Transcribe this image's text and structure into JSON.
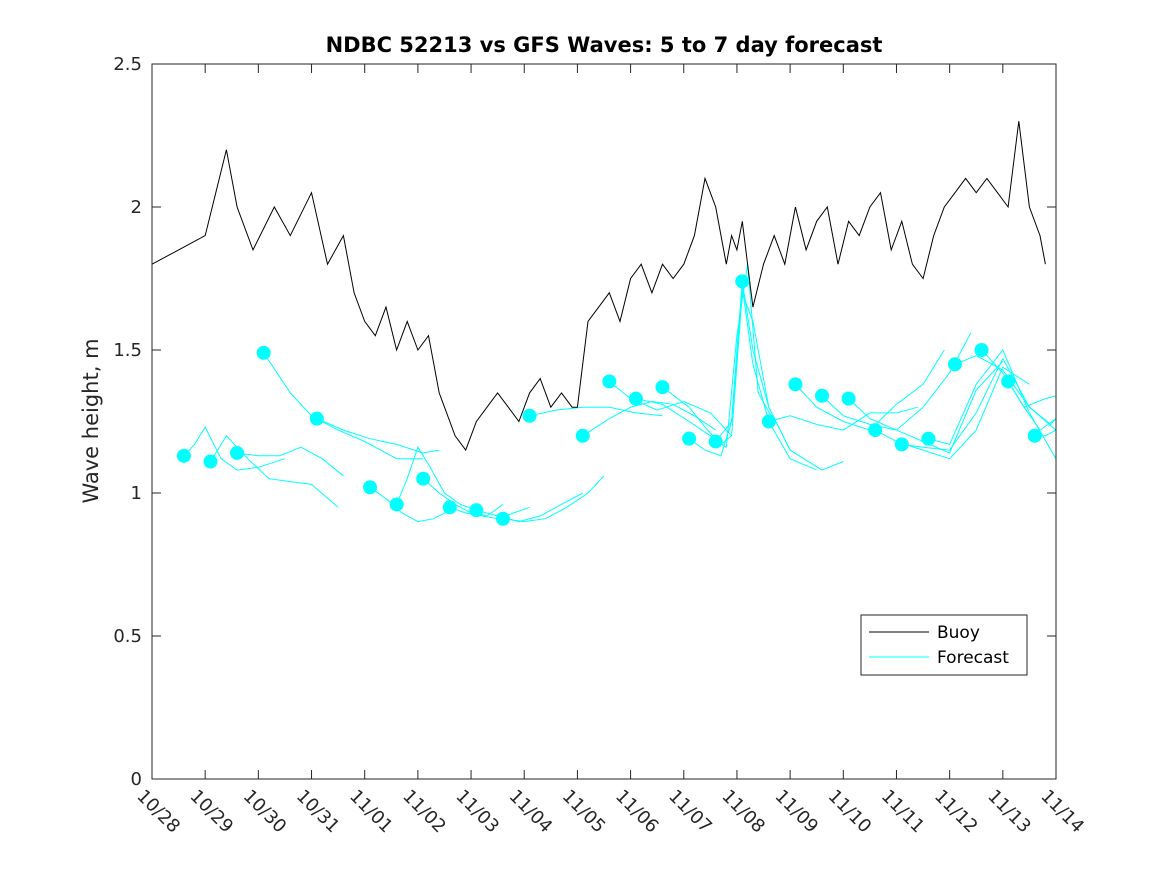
{
  "chart_data": {
    "type": "line",
    "title": "NDBC 52213 vs GFS Waves: 5 to 7 day forecast",
    "xlabel": "",
    "ylabel": "Wave height, m",
    "xlim": [
      0,
      17
    ],
    "ylim": [
      0,
      2.5
    ],
    "x_ticks": [
      0,
      1,
      2,
      3,
      4,
      5,
      6,
      7,
      8,
      9,
      10,
      11,
      12,
      13,
      14,
      15,
      16,
      17
    ],
    "x_tick_labels": [
      "10/28",
      "10/29",
      "10/30",
      "10/31",
      "11/01",
      "11/02",
      "11/03",
      "11/04",
      "11/05",
      "11/06",
      "11/07",
      "11/08",
      "11/09",
      "11/10",
      "11/11",
      "11/12",
      "11/13",
      "11/14"
    ],
    "y_ticks": [
      0,
      0.5,
      1,
      1.5,
      2,
      2.5
    ],
    "y_tick_labels": [
      "0",
      "0.5",
      "1",
      "1.5",
      "2",
      "2.5"
    ],
    "legend_position": "lower-right",
    "colors": {
      "buoy": "#000000",
      "forecast": "#00ffff",
      "axes": "#262626"
    },
    "series": [
      {
        "name": "Buoy",
        "style": "black-line",
        "x": [
          0.0,
          0.5,
          1.0,
          1.4,
          1.6,
          1.9,
          2.3,
          2.6,
          3.0,
          3.3,
          3.6,
          3.8,
          4.0,
          4.2,
          4.4,
          4.6,
          4.8,
          5.0,
          5.2,
          5.4,
          5.5,
          5.7,
          5.9,
          6.1,
          6.3,
          6.5,
          6.7,
          6.9,
          7.1,
          7.3,
          7.5,
          7.7,
          7.9,
          8.0,
          8.2,
          8.4,
          8.6,
          8.8,
          9.0,
          9.2,
          9.4,
          9.6,
          9.8,
          10.0,
          10.2,
          10.4,
          10.6,
          10.8,
          10.9,
          11.0,
          11.1,
          11.3,
          11.5,
          11.7,
          11.9,
          12.1,
          12.3,
          12.5,
          12.7,
          12.9,
          13.1,
          13.3,
          13.5,
          13.7,
          13.9,
          14.1,
          14.3,
          14.5,
          14.7,
          14.9,
          15.1,
          15.3,
          15.5,
          15.7,
          15.9,
          16.1,
          16.3,
          16.5,
          16.7,
          16.8
        ],
        "values": [
          1.8,
          1.85,
          1.9,
          2.2,
          2.0,
          1.85,
          2.0,
          1.9,
          2.05,
          1.8,
          1.9,
          1.7,
          1.6,
          1.55,
          1.65,
          1.5,
          1.6,
          1.5,
          1.55,
          1.35,
          1.3,
          1.2,
          1.15,
          1.25,
          1.3,
          1.35,
          1.3,
          1.25,
          1.35,
          1.4,
          1.3,
          1.35,
          1.3,
          1.3,
          1.6,
          1.65,
          1.7,
          1.6,
          1.75,
          1.8,
          1.7,
          1.8,
          1.75,
          1.8,
          1.9,
          2.1,
          2.0,
          1.8,
          1.9,
          1.85,
          1.95,
          1.65,
          1.8,
          1.9,
          1.8,
          2.0,
          1.85,
          1.95,
          2.0,
          1.8,
          1.95,
          1.9,
          2.0,
          2.05,
          1.85,
          1.95,
          1.8,
          1.75,
          1.9,
          2.0,
          2.05,
          2.1,
          2.05,
          2.1,
          2.05,
          2.0,
          2.3,
          2.0,
          1.9,
          1.8
        ]
      },
      {
        "name": "Forecast",
        "style": "cyan-lines",
        "runs": [
          {
            "x": [
              0.6,
              0.8,
              1.0,
              1.3,
              1.6,
              2.0,
              2.5
            ],
            "values": [
              1.13,
              1.17,
              1.23,
              1.12,
              1.08,
              1.09,
              1.12
            ]
          },
          {
            "x": [
              1.1,
              1.4,
              1.8,
              2.2,
              2.6,
              3.0,
              3.5
            ],
            "values": [
              1.11,
              1.2,
              1.12,
              1.05,
              1.04,
              1.03,
              0.95
            ]
          },
          {
            "x": [
              1.6,
              2.0,
              2.4,
              2.8,
              3.2,
              3.6
            ],
            "values": [
              1.14,
              1.13,
              1.13,
              1.16,
              1.12,
              1.06
            ]
          },
          {
            "x": [
              2.1,
              2.6,
              3.0,
              3.5,
              4.0,
              4.6,
              5.1
            ],
            "values": [
              1.49,
              1.35,
              1.27,
              1.22,
              1.18,
              1.12,
              1.12
            ]
          },
          {
            "x": [
              3.1,
              3.6,
              4.1,
              4.6,
              5.1,
              5.4
            ],
            "values": [
              1.26,
              1.22,
              1.19,
              1.17,
              1.14,
              1.15
            ]
          },
          {
            "x": [
              4.1,
              4.4,
              4.7,
              5.0,
              5.3,
              5.6
            ],
            "values": [
              1.02,
              0.98,
              0.93,
              0.9,
              0.91,
              0.94
            ]
          },
          {
            "x": [
              4.6,
              4.8,
              5.0,
              5.2,
              5.5,
              5.8,
              6.1
            ],
            "values": [
              0.96,
              1.05,
              1.16,
              1.1,
              1.0,
              0.96,
              0.94
            ]
          },
          {
            "x": [
              5.1,
              5.4,
              5.7,
              6.0,
              6.3,
              6.6
            ],
            "values": [
              1.05,
              1.0,
              0.96,
              0.93,
              0.92,
              0.96
            ]
          },
          {
            "x": [
              5.6,
              5.9,
              6.2,
              6.5,
              6.8,
              7.1
            ],
            "values": [
              0.95,
              0.93,
              0.92,
              0.91,
              0.93,
              0.95
            ]
          },
          {
            "x": [
              6.1,
              6.5,
              6.9,
              7.3,
              7.7,
              8.1
            ],
            "values": [
              0.94,
              0.92,
              0.9,
              0.92,
              0.96,
              1.0
            ]
          },
          {
            "x": [
              6.6,
              7.0,
              7.4,
              7.8,
              8.2,
              8.5
            ],
            "values": [
              0.91,
              0.9,
              0.91,
              0.95,
              1.0,
              1.06
            ]
          },
          {
            "x": [
              7.1,
              7.6,
              8.1,
              8.6,
              9.1,
              9.6
            ],
            "values": [
              1.27,
              1.29,
              1.3,
              1.3,
              1.28,
              1.27
            ]
          },
          {
            "x": [
              8.1,
              8.6,
              9.0,
              9.4,
              9.8,
              10.2,
              10.6
            ],
            "values": [
              1.2,
              1.26,
              1.3,
              1.32,
              1.31,
              1.27,
              1.22
            ]
          },
          {
            "x": [
              8.6,
              9.0,
              9.5,
              10.0,
              10.5,
              10.9
            ],
            "values": [
              1.39,
              1.33,
              1.29,
              1.32,
              1.28,
              1.2
            ]
          },
          {
            "x": [
              9.1,
              9.6,
              10.1,
              10.5,
              10.8,
              11.0,
              11.2,
              11.4,
              11.7
            ],
            "values": [
              1.33,
              1.31,
              1.25,
              1.2,
              1.16,
              1.55,
              1.8,
              1.35,
              1.25
            ]
          },
          {
            "x": [
              9.6,
              10.1,
              10.4,
              10.7,
              10.9,
              11.1,
              11.3,
              11.6,
              12.0
            ],
            "values": [
              1.37,
              1.3,
              1.23,
              1.17,
              1.2,
              1.7,
              1.6,
              1.3,
              1.15
            ]
          },
          {
            "x": [
              10.1,
              10.4,
              10.7,
              10.9,
              11.1,
              11.3,
              11.6,
              12.0,
              12.5
            ],
            "values": [
              1.19,
              1.15,
              1.13,
              1.25,
              1.72,
              1.45,
              1.25,
              1.12,
              1.08
            ]
          },
          {
            "x": [
              10.6,
              10.9,
              11.0,
              11.1,
              11.3,
              11.6,
              12.0,
              12.6,
              13.0
            ],
            "values": [
              1.18,
              1.25,
              1.5,
              1.74,
              1.5,
              1.3,
              1.15,
              1.08,
              1.11
            ]
          },
          {
            "x": [
              11.6,
              12.0,
              12.5,
              13.0,
              13.5,
              14.0,
              14.4
            ],
            "values": [
              1.25,
              1.27,
              1.24,
              1.22,
              1.28,
              1.28,
              1.3
            ]
          },
          {
            "x": [
              12.1,
              12.5,
              13.0,
              13.5,
              14.0,
              14.5,
              14.9
            ],
            "values": [
              1.38,
              1.3,
              1.25,
              1.22,
              1.31,
              1.38,
              1.5
            ]
          },
          {
            "x": [
              12.6,
              13.0,
              13.5,
              14.0,
              14.5,
              15.0,
              15.4
            ],
            "values": [
              1.34,
              1.27,
              1.24,
              1.22,
              1.3,
              1.42,
              1.56
            ]
          },
          {
            "x": [
              13.1,
              13.5,
              14.0,
              14.5,
              15.0,
              15.5,
              16.0
            ],
            "values": [
              1.33,
              1.26,
              1.22,
              1.18,
              1.14,
              1.36,
              1.46
            ]
          },
          {
            "x": [
              13.6,
              14.0,
              14.5,
              15.0,
              15.5,
              16.0,
              16.5
            ],
            "values": [
              1.22,
              1.18,
              1.15,
              1.12,
              1.22,
              1.44,
              1.38
            ]
          },
          {
            "x": [
              14.1,
              14.5,
              15.0,
              15.5,
              16.0,
              16.5,
              17.0
            ],
            "values": [
              1.17,
              1.16,
              1.15,
              1.28,
              1.47,
              1.3,
              1.22
            ]
          },
          {
            "x": [
              14.6,
              15.0,
              15.5,
              16.0,
              16.5,
              17.0
            ],
            "values": [
              1.19,
              1.17,
              1.38,
              1.5,
              1.28,
              1.12
            ]
          },
          {
            "x": [
              15.1,
              15.5,
              16.0,
              16.5,
              16.9,
              17.0
            ],
            "values": [
              1.45,
              1.48,
              1.43,
              1.3,
              1.24,
              1.26
            ]
          },
          {
            "x": [
              15.6,
              16.0,
              16.4,
              16.8,
              17.0
            ],
            "values": [
              1.5,
              1.42,
              1.3,
              1.33,
              1.34
            ]
          },
          {
            "x": [
              16.1,
              16.4,
              16.7,
              17.0
            ],
            "values": [
              1.39,
              1.3,
              1.22,
              1.26
            ]
          },
          {
            "x": [
              16.6,
              16.8,
              17.0
            ],
            "values": [
              1.2,
              1.2,
              1.22
            ]
          }
        ],
        "initial_points": {
          "x": [
            0.6,
            1.1,
            1.6,
            2.1,
            3.1,
            4.1,
            4.6,
            5.1,
            5.6,
            6.1,
            6.6,
            7.1,
            8.1,
            8.6,
            9.1,
            9.6,
            10.1,
            10.6,
            11.1,
            11.6,
            12.1,
            12.6,
            13.1,
            13.6,
            14.1,
            14.6,
            15.1,
            15.6,
            16.1,
            16.6
          ],
          "values": [
            1.13,
            1.11,
            1.14,
            1.49,
            1.26,
            1.02,
            0.96,
            1.05,
            0.95,
            0.94,
            0.91,
            1.27,
            1.2,
            1.39,
            1.33,
            1.37,
            1.19,
            1.18,
            1.74,
            1.25,
            1.38,
            1.34,
            1.33,
            1.22,
            1.17,
            1.19,
            1.45,
            1.5,
            1.39,
            1.2
          ]
        }
      }
    ]
  }
}
